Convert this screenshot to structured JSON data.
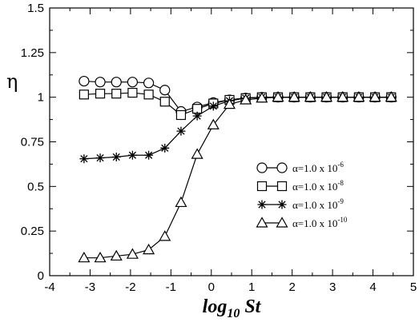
{
  "chart_data": {
    "type": "line",
    "xlabel": {
      "main": "log",
      "sub": "10",
      "rest": " St"
    },
    "ylabel": "η",
    "xlim": [
      -4,
      5
    ],
    "ylim": [
      0,
      1.5
    ],
    "x_ticks": [
      -4,
      -3,
      -2,
      -1,
      0,
      1,
      2,
      3,
      4,
      5
    ],
    "x_tick_labels": [
      "-4",
      "-3",
      "-2",
      "-1",
      "0",
      "1",
      "2",
      "3",
      "4",
      "5"
    ],
    "y_ticks": [
      0,
      0.25,
      0.5,
      0.75,
      1,
      1.25,
      1.5
    ],
    "y_tick_labels": [
      "0",
      "0.25",
      "0.5",
      "0.75",
      "1",
      "1.25",
      "1.5"
    ],
    "grid": false,
    "legend_position": "center-right",
    "x": [
      -3.15,
      -2.75,
      -2.35,
      -1.95,
      -1.55,
      -1.15,
      -0.75,
      -0.35,
      0.05,
      0.45,
      0.85,
      1.25,
      1.65,
      2.05,
      2.45,
      2.85,
      3.25,
      3.65,
      4.05,
      4.45
    ],
    "series": [
      {
        "name": "α=1.0 x 10-6",
        "label_base": "α=1.0 x 10",
        "label_exp": "-6",
        "marker": "circle",
        "values": [
          1.09,
          1.085,
          1.085,
          1.085,
          1.08,
          1.04,
          0.92,
          0.945,
          0.97,
          0.985,
          0.995,
          1.0,
          1.0,
          1.0,
          1.0,
          1.0,
          1.0,
          1.0,
          1.0,
          1.0
        ]
      },
      {
        "name": "α=1.0 x 10-8",
        "label_base": "α=1.0 x 10",
        "label_exp": "-8",
        "marker": "square",
        "values": [
          1.015,
          1.02,
          1.02,
          1.025,
          1.015,
          0.975,
          0.9,
          0.935,
          0.965,
          0.985,
          0.995,
          1.0,
          1.0,
          1.0,
          1.0,
          1.0,
          1.0,
          1.0,
          1.0,
          1.0
        ]
      },
      {
        "name": "α=1.0 x 10-9",
        "label_base": "α=1.0 x 10",
        "label_exp": "-9",
        "marker": "asterisk",
        "values": [
          0.655,
          0.66,
          0.665,
          0.675,
          0.675,
          0.715,
          0.81,
          0.895,
          0.95,
          0.98,
          0.995,
          1.0,
          1.0,
          1.0,
          1.0,
          1.0,
          1.0,
          1.0,
          1.0,
          1.0
        ]
      },
      {
        "name": "α=1.0 x 10-10",
        "label_base": "α=1.0 x 10",
        "label_exp": "-10",
        "marker": "triangle",
        "values": [
          0.1,
          0.1,
          0.11,
          0.12,
          0.145,
          0.22,
          0.41,
          0.68,
          0.845,
          0.96,
          0.985,
          0.995,
          1.0,
          1.0,
          1.0,
          1.0,
          1.0,
          1.0,
          1.0,
          1.0
        ]
      }
    ]
  }
}
